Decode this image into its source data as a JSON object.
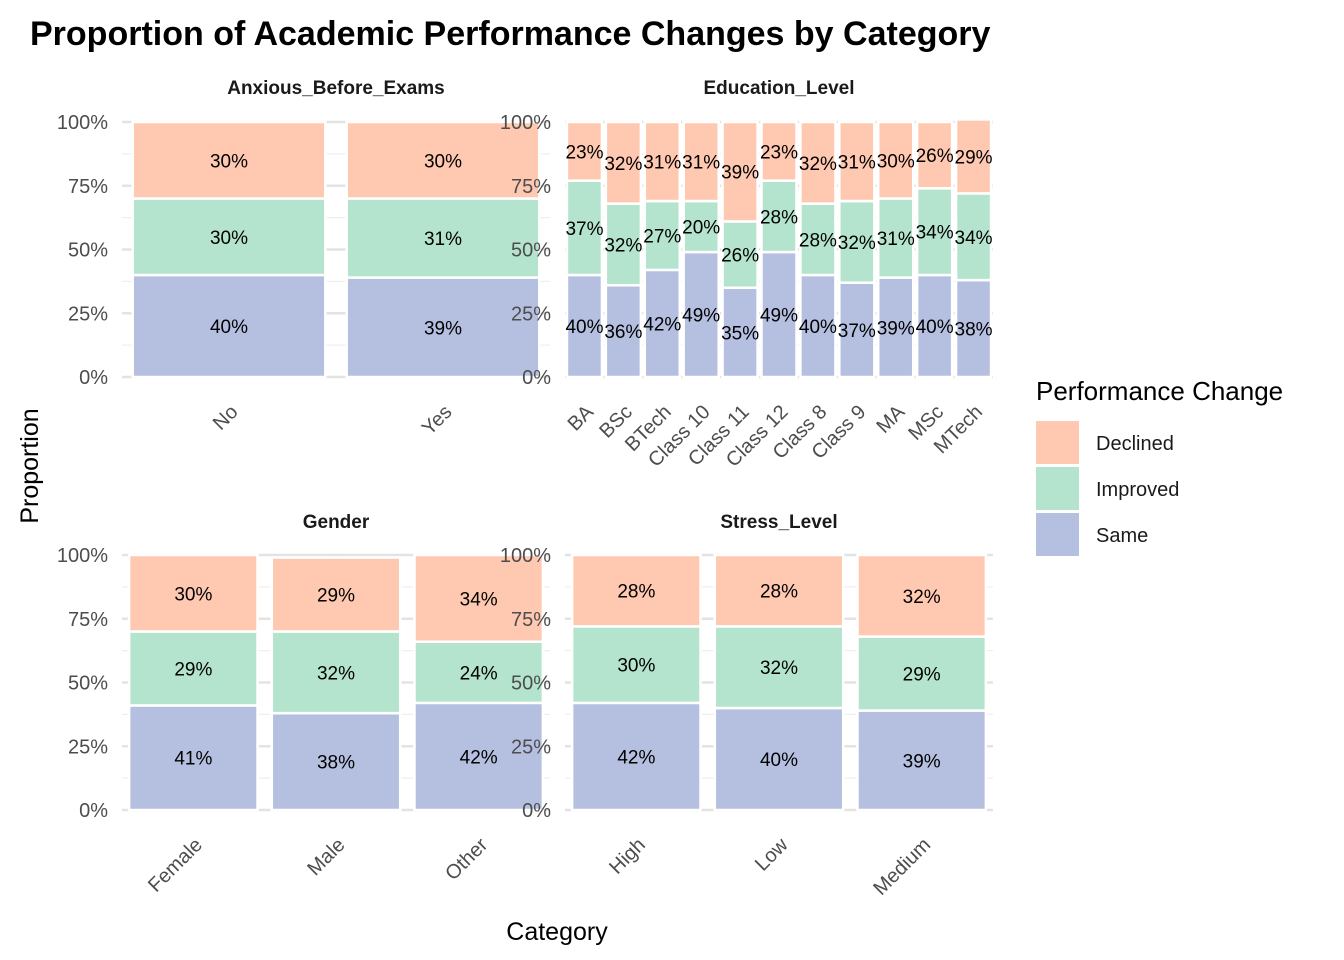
{
  "title": "Proportion of Academic Performance Changes by Category",
  "xlabel": "Category",
  "ylabel": "Proportion",
  "legend": {
    "title": "Performance Change",
    "placement": "right",
    "items": [
      {
        "label": "Declined",
        "color": "#FFC8B0"
      },
      {
        "label": "Improved",
        "color": "#B4E4CD"
      },
      {
        "label": "Same",
        "color": "#B5C0E1"
      }
    ]
  },
  "chart_data": [
    {
      "type": "bar",
      "stacked": true,
      "facet": "Anxious_Before_Exams",
      "categories": [
        "No",
        "Yes"
      ],
      "series": [
        {
          "name": "Same",
          "values": [
            40,
            39
          ]
        },
        {
          "name": "Improved",
          "values": [
            30,
            31
          ]
        },
        {
          "name": "Declined",
          "values": [
            30,
            30
          ]
        }
      ],
      "yticks": [
        "0%",
        "25%",
        "50%",
        "75%",
        "100%"
      ],
      "ylim": [
        0,
        100
      ]
    },
    {
      "type": "bar",
      "stacked": true,
      "facet": "Education_Level",
      "categories": [
        "BA",
        "BSc",
        "BTech",
        "Class 10",
        "Class 11",
        "Class 12",
        "Class 8",
        "Class 9",
        "MA",
        "MSc",
        "MTech"
      ],
      "series": [
        {
          "name": "Same",
          "values": [
            40,
            36,
            42,
            49,
            35,
            49,
            40,
            37,
            39,
            40,
            38
          ]
        },
        {
          "name": "Improved",
          "values": [
            37,
            32,
            27,
            20,
            26,
            28,
            28,
            32,
            31,
            34,
            34
          ]
        },
        {
          "name": "Declined",
          "values": [
            23,
            32,
            31,
            31,
            39,
            23,
            32,
            31,
            30,
            26,
            29
          ]
        }
      ],
      "yticks": [
        "0%",
        "25%",
        "50%",
        "75%",
        "100%"
      ],
      "ylim": [
        0,
        100
      ]
    },
    {
      "type": "bar",
      "stacked": true,
      "facet": "Gender",
      "categories": [
        "Female",
        "Male",
        "Other"
      ],
      "series": [
        {
          "name": "Same",
          "values": [
            41,
            38,
            42
          ]
        },
        {
          "name": "Improved",
          "values": [
            29,
            32,
            24
          ]
        },
        {
          "name": "Declined",
          "values": [
            30,
            29,
            34
          ]
        }
      ],
      "yticks": [
        "0%",
        "25%",
        "50%",
        "75%",
        "100%"
      ],
      "ylim": [
        0,
        100
      ]
    },
    {
      "type": "bar",
      "stacked": true,
      "facet": "Stress_Level",
      "categories": [
        "High",
        "Low",
        "Medium"
      ],
      "series": [
        {
          "name": "Same",
          "values": [
            42,
            40,
            39
          ]
        },
        {
          "name": "Improved",
          "values": [
            30,
            32,
            29
          ]
        },
        {
          "name": "Declined",
          "values": [
            28,
            28,
            32
          ]
        }
      ],
      "yticks": [
        "0%",
        "25%",
        "50%",
        "75%",
        "100%"
      ],
      "ylim": [
        0,
        100
      ]
    }
  ]
}
